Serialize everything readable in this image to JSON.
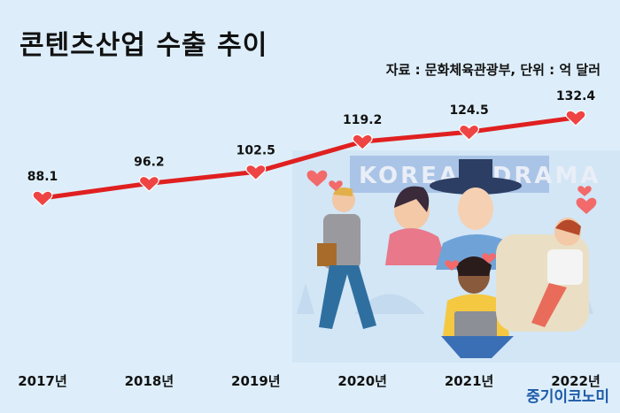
{
  "header": {
    "title": "콘텐츠산업 수출 추이",
    "source": "자료 : 문화체육관광부, 단위 : 억 달러"
  },
  "brand": "중기이코노미",
  "illustration": {
    "banner_text": "KOREAN DRAMA"
  },
  "colors": {
    "line": "#e02020",
    "marker": "#ee4444",
    "background": "#ddeefa",
    "brand": "#1e5aa8"
  },
  "chart_data": {
    "type": "line",
    "title": "콘텐츠산업 수출 추이",
    "x": [
      "2017년",
      "2018년",
      "2019년",
      "2020년",
      "2021년",
      "2022년"
    ],
    "series": [
      {
        "values": [
          88.1,
          96.2,
          102.5,
          119.2,
          124.5,
          132.4
        ]
      }
    ],
    "data_labels": [
      "88.1",
      "96.2",
      "102.5",
      "119.2",
      "124.5",
      "132.4"
    ],
    "unit": "억 달러",
    "grid": false,
    "marker": "heart"
  }
}
